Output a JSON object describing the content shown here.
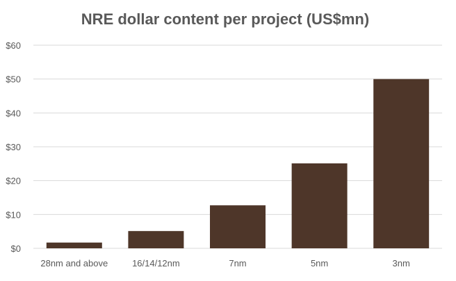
{
  "chart_data": {
    "type": "bar",
    "title": "NRE dollar content per project (US$mn)",
    "categories": [
      "28nm and above",
      "16/14/12nm",
      "7nm",
      "5nm",
      "3nm"
    ],
    "values": [
      1.7,
      5.1,
      12.7,
      25.1,
      50
    ],
    "ylim": [
      0,
      60
    ],
    "yticks": [
      0,
      10,
      20,
      30,
      40,
      50,
      60
    ],
    "ytick_labels": [
      "$0",
      "$10",
      "$20",
      "$30",
      "$40",
      "$50",
      "$60"
    ],
    "xlabel": "",
    "ylabel": "",
    "grid": true,
    "legend": "none",
    "bar_color": "#4e3629"
  }
}
